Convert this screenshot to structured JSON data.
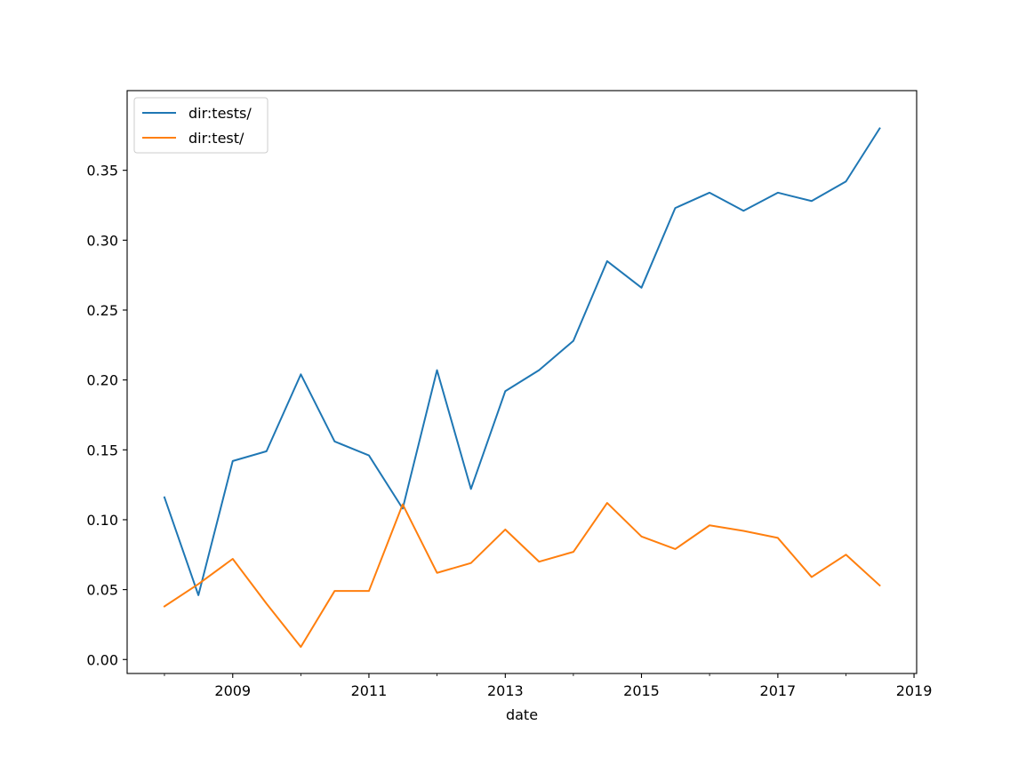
{
  "chart_data": {
    "type": "line",
    "title": "",
    "xlabel": "date",
    "ylabel": "",
    "xlim": [
      "2007-06-15",
      "2019-01-15"
    ],
    "ylim": [
      -0.01,
      0.407
    ],
    "xticks": [
      {
        "date": "2008-01-01",
        "label": ""
      },
      {
        "date": "2009-01-01",
        "label": "2009"
      },
      {
        "date": "2010-01-01",
        "label": ""
      },
      {
        "date": "2011-01-01",
        "label": "2011"
      },
      {
        "date": "2012-01-01",
        "label": ""
      },
      {
        "date": "2013-01-01",
        "label": "2013"
      },
      {
        "date": "2014-01-01",
        "label": ""
      },
      {
        "date": "2015-01-01",
        "label": "2015"
      },
      {
        "date": "2016-01-01",
        "label": ""
      },
      {
        "date": "2017-01-01",
        "label": "2017"
      },
      {
        "date": "2018-01-01",
        "label": ""
      },
      {
        "date": "2019-01-01",
        "label": "2019"
      }
    ],
    "yticks": [
      {
        "value": 0.0,
        "label": "0.00"
      },
      {
        "value": 0.05,
        "label": "0.05"
      },
      {
        "value": 0.1,
        "label": "0.10"
      },
      {
        "value": 0.15,
        "label": "0.15"
      },
      {
        "value": 0.2,
        "label": "0.20"
      },
      {
        "value": 0.25,
        "label": "0.25"
      },
      {
        "value": 0.3,
        "label": "0.30"
      },
      {
        "value": 0.35,
        "label": "0.35"
      }
    ],
    "x": [
      "2008-01-01",
      "2008-07-01",
      "2009-01-01",
      "2009-07-01",
      "2010-01-01",
      "2010-07-01",
      "2011-01-01",
      "2011-07-01",
      "2012-01-01",
      "2012-07-01",
      "2013-01-01",
      "2013-07-01",
      "2014-01-01",
      "2014-07-01",
      "2015-01-01",
      "2015-07-01",
      "2016-01-01",
      "2016-07-01",
      "2017-01-01",
      "2017-07-01",
      "2018-01-01",
      "2018-07-01"
    ],
    "series": [
      {
        "name": "dir:tests/",
        "color": "#1f77b4",
        "values": [
          0.116,
          0.046,
          0.142,
          0.149,
          0.204,
          0.156,
          0.146,
          0.108,
          0.207,
          0.122,
          0.192,
          0.207,
          0.228,
          0.285,
          0.266,
          0.323,
          0.334,
          0.321,
          0.334,
          0.328,
          0.342,
          0.38
        ]
      },
      {
        "name": "dir:test/",
        "color": "#ff7f0e",
        "values": [
          0.038,
          0.054,
          0.072,
          0.04,
          0.009,
          0.049,
          0.049,
          0.111,
          0.062,
          0.069,
          0.093,
          0.07,
          0.077,
          0.112,
          0.088,
          0.079,
          0.096,
          0.092,
          0.087,
          0.059,
          0.075,
          0.053
        ]
      }
    ],
    "grid": false,
    "legend_position": "upper-left"
  }
}
